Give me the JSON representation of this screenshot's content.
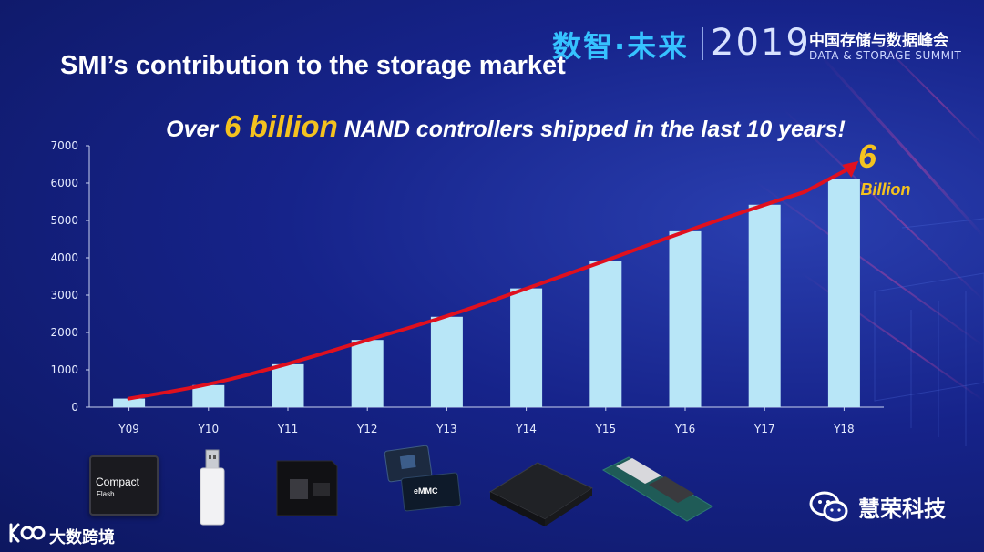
{
  "event": {
    "cn_mark": "数智·未来",
    "year": "2019",
    "name_cn": "中国存储与数据峰会",
    "name_en": "DATA & STORAGE SUMMIT"
  },
  "slide": {
    "title": "SMI’s contribution to the storage market",
    "headline_pre": "Over ",
    "headline_num": "6 billion",
    "headline_post": " NAND controllers shipped in the last 10 years!"
  },
  "chart_data": {
    "type": "bar",
    "categories": [
      "Y09",
      "Y10",
      "Y11",
      "Y12",
      "Y13",
      "Y14",
      "Y15",
      "Y16",
      "Y17",
      "Y18"
    ],
    "values": [
      230,
      590,
      1150,
      1800,
      2420,
      3180,
      3920,
      4710,
      5420,
      6100
    ],
    "ylim": [
      0,
      7000
    ],
    "yticks": [
      0,
      1000,
      2000,
      3000,
      4000,
      5000,
      6000,
      7000
    ],
    "grid": false,
    "bar_color": "#b8e6f7",
    "trend_color": "#e0101e",
    "annotation": {
      "num": "6",
      "unit": "Billion"
    }
  },
  "products": {
    "cf_label1": "Compact",
    "cf_label2": "Flash",
    "emmc_label": "eMMC"
  },
  "watermark": {
    "text": "慧荣科技"
  },
  "footer": {
    "text": "大数跨境"
  }
}
